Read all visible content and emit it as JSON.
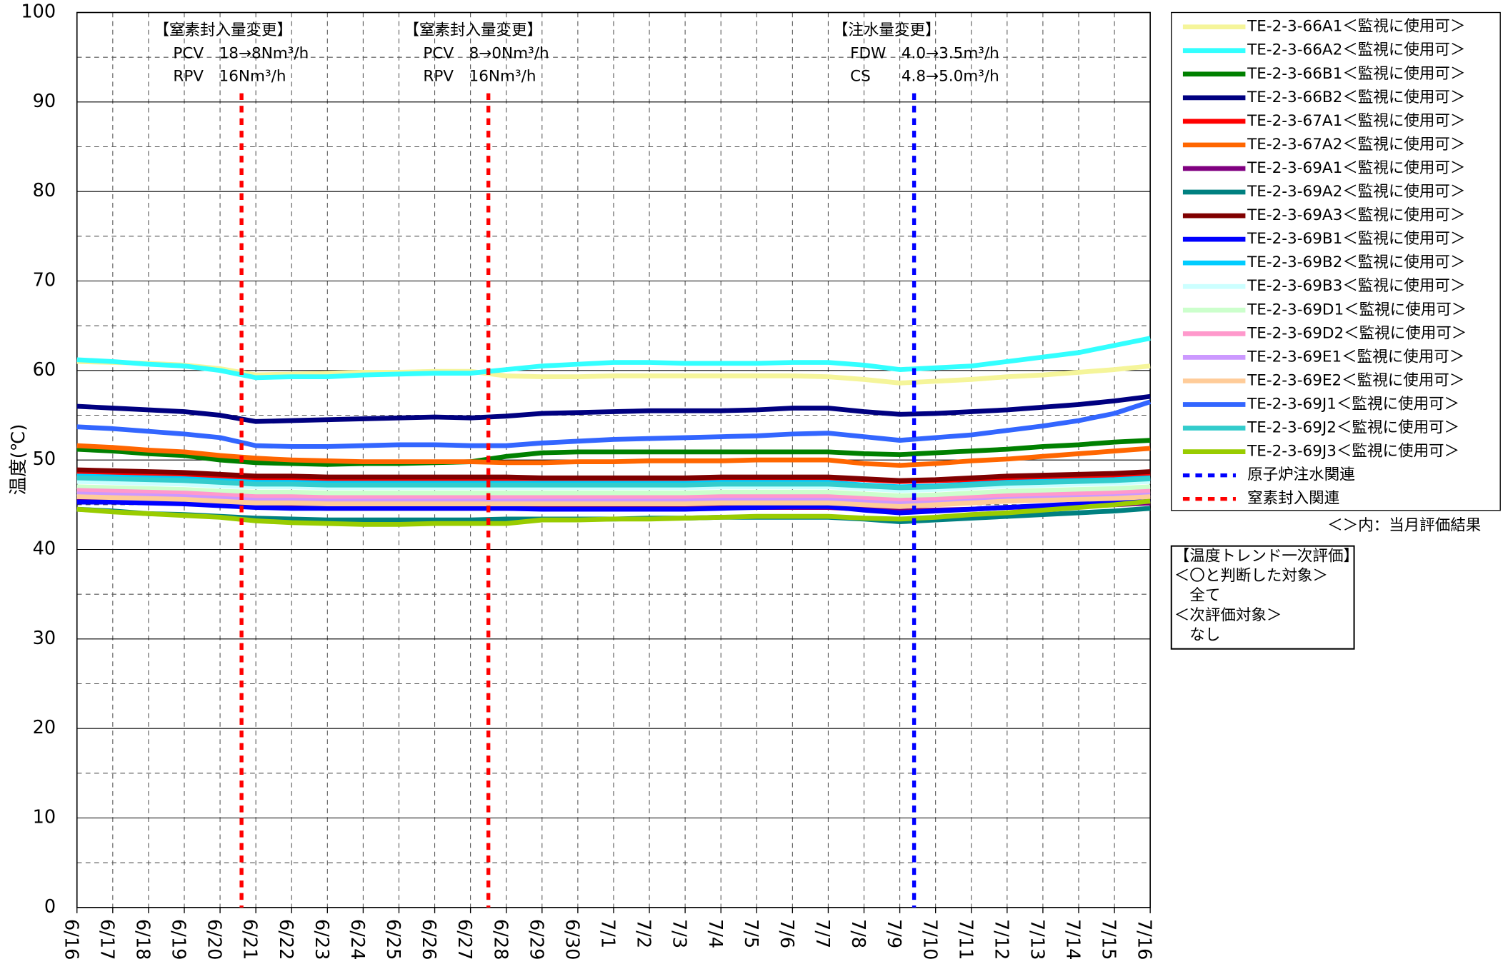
{
  "chart_data": {
    "type": "line",
    "y_axis_label": "温度(℃)",
    "categories": [
      "6/16",
      "6/17",
      "6/18",
      "6/19",
      "6/20",
      "6/21",
      "6/22",
      "6/23",
      "6/24",
      "6/25",
      "6/26",
      "6/27",
      "6/28",
      "6/29",
      "6/30",
      "7/1",
      "7/2",
      "7/3",
      "7/4",
      "7/5",
      "7/6",
      "7/7",
      "7/8",
      "7/9",
      "7/10",
      "7/11",
      "7/12",
      "7/13",
      "7/14",
      "7/15",
      "7/16"
    ],
    "ylim": [
      0,
      100
    ],
    "yticks": [
      0,
      10,
      20,
      30,
      40,
      50,
      60,
      70,
      80,
      90,
      100
    ],
    "minor_yticks": [
      5,
      15,
      25,
      35,
      45,
      55,
      65,
      75,
      85,
      95
    ],
    "grid": true,
    "series": [
      {
        "name": "TE-2-3-66A1＜監視に使用可＞",
        "color": "#f5f59a",
        "values": [
          61.0,
          60.9,
          60.8,
          60.6,
          60.2,
          59.5,
          59.6,
          59.7,
          59.8,
          59.8,
          59.9,
          59.9,
          59.4,
          59.3,
          59.3,
          59.4,
          59.4,
          59.4,
          59.4,
          59.4,
          59.4,
          59.3,
          59.0,
          58.6,
          58.8,
          59.0,
          59.3,
          59.5,
          59.8,
          60.1,
          60.5
        ]
      },
      {
        "name": "TE-2-3-66A2＜監視に使用可＞",
        "color": "#33ffff",
        "values": [
          61.2,
          61.0,
          60.7,
          60.5,
          60.0,
          59.2,
          59.3,
          59.3,
          59.5,
          59.6,
          59.7,
          59.7,
          60.1,
          60.5,
          60.7,
          60.9,
          60.9,
          60.8,
          60.8,
          60.8,
          60.9,
          60.9,
          60.6,
          60.1,
          60.3,
          60.5,
          61.0,
          61.5,
          62.0,
          62.8,
          63.6
        ]
      },
      {
        "name": "TE-2-3-66B1＜監視に使用可＞",
        "color": "#008000",
        "values": [
          51.2,
          51.0,
          50.7,
          50.5,
          50.0,
          49.7,
          49.6,
          49.5,
          49.6,
          49.6,
          49.7,
          49.8,
          50.4,
          50.8,
          50.9,
          50.9,
          50.9,
          50.9,
          50.9,
          50.9,
          50.9,
          50.9,
          50.7,
          50.6,
          50.8,
          51.0,
          51.2,
          51.5,
          51.7,
          52.0,
          52.2
        ]
      },
      {
        "name": "TE-2-3-66B2＜監視に使用可＞",
        "color": "#000080",
        "values": [
          56.0,
          55.8,
          55.6,
          55.4,
          55.0,
          54.3,
          54.4,
          54.5,
          54.6,
          54.7,
          54.8,
          54.7,
          54.9,
          55.2,
          55.3,
          55.4,
          55.5,
          55.5,
          55.5,
          55.6,
          55.8,
          55.8,
          55.4,
          55.1,
          55.2,
          55.4,
          55.6,
          55.9,
          56.2,
          56.6,
          57.1
        ]
      },
      {
        "name": "TE-2-3-67A1＜監視に使用可＞",
        "color": "#ff0000",
        "values": [
          48.7,
          48.6,
          48.5,
          48.4,
          48.2,
          48.0,
          48.0,
          47.9,
          47.9,
          47.9,
          47.9,
          47.9,
          47.9,
          47.9,
          47.9,
          47.9,
          47.9,
          47.9,
          48.0,
          48.0,
          48.0,
          48.0,
          47.8,
          47.6,
          47.7,
          47.8,
          48.0,
          48.1,
          48.2,
          48.3,
          48.5
        ]
      },
      {
        "name": "TE-2-3-67A2＜監視に使用可＞",
        "color": "#ff6600",
        "values": [
          51.6,
          51.4,
          51.1,
          50.9,
          50.5,
          50.2,
          50.0,
          49.9,
          49.8,
          49.8,
          49.8,
          49.8,
          49.7,
          49.7,
          49.8,
          49.8,
          49.9,
          49.9,
          49.9,
          50.0,
          50.0,
          50.0,
          49.6,
          49.4,
          49.6,
          49.9,
          50.1,
          50.4,
          50.7,
          51.0,
          51.3
        ]
      },
      {
        "name": "TE-2-3-69A1＜監視に使用可＞",
        "color": "#800080",
        "values": [
          45.5,
          45.4,
          45.3,
          45.2,
          45.0,
          44.8,
          44.7,
          44.6,
          44.6,
          44.6,
          44.6,
          44.6,
          44.6,
          44.6,
          44.6,
          44.6,
          44.6,
          44.6,
          44.7,
          44.7,
          44.7,
          44.7,
          44.5,
          44.3,
          44.4,
          44.5,
          44.7,
          44.8,
          44.9,
          45.0,
          45.2
        ]
      },
      {
        "name": "TE-2-3-69A2＜監視に使用可＞",
        "color": "#008080",
        "values": [
          44.5,
          44.3,
          44.0,
          43.9,
          43.7,
          43.5,
          43.4,
          43.3,
          43.3,
          43.3,
          43.3,
          43.3,
          43.4,
          43.4,
          43.4,
          43.4,
          43.5,
          43.5,
          43.6,
          43.6,
          43.6,
          43.6,
          43.4,
          43.1,
          43.3,
          43.5,
          43.7,
          43.9,
          44.1,
          44.3,
          44.6
        ]
      },
      {
        "name": "TE-2-3-69A3＜監視に使用可＞",
        "color": "#800000",
        "values": [
          48.9,
          48.8,
          48.7,
          48.6,
          48.4,
          48.2,
          48.2,
          48.1,
          48.1,
          48.1,
          48.1,
          48.1,
          48.1,
          48.0,
          48.0,
          48.0,
          48.0,
          48.0,
          48.1,
          48.1,
          48.1,
          48.1,
          47.9,
          47.7,
          47.8,
          48.0,
          48.2,
          48.3,
          48.4,
          48.5,
          48.7
        ]
      },
      {
        "name": "TE-2-3-69B1＜監視に使用可＞",
        "color": "#0000ff",
        "values": [
          45.3,
          45.3,
          45.2,
          45.1,
          44.9,
          44.7,
          44.6,
          44.6,
          44.6,
          44.6,
          44.6,
          44.6,
          44.6,
          44.5,
          44.5,
          44.5,
          44.5,
          44.5,
          44.6,
          44.7,
          44.8,
          44.8,
          44.4,
          44.1,
          44.3,
          44.5,
          44.7,
          44.9,
          45.1,
          45.3,
          45.5
        ]
      },
      {
        "name": "TE-2-3-69B2＜監視に使用可＞",
        "color": "#00ccff",
        "values": [
          48.2,
          48.1,
          48.0,
          47.9,
          47.7,
          47.5,
          47.5,
          47.4,
          47.4,
          47.4,
          47.4,
          47.4,
          47.4,
          47.4,
          47.4,
          47.4,
          47.4,
          47.4,
          47.5,
          47.5,
          47.5,
          47.5,
          47.2,
          47.0,
          47.1,
          47.3,
          47.5,
          47.6,
          47.7,
          47.8,
          48.0
        ]
      },
      {
        "name": "TE-2-3-69B3＜監視に使用可＞",
        "color": "#ccffff",
        "values": [
          47.6,
          47.5,
          47.4,
          47.3,
          47.1,
          47.0,
          47.0,
          46.9,
          46.9,
          46.9,
          46.9,
          46.9,
          46.9,
          46.9,
          46.9,
          46.9,
          46.9,
          46.9,
          47.0,
          47.0,
          47.0,
          47.0,
          46.8,
          46.6,
          46.7,
          46.9,
          47.1,
          47.2,
          47.3,
          47.4,
          47.6
        ]
      },
      {
        "name": "TE-2-3-69D1＜監視に使用可＞",
        "color": "#ccffcc",
        "values": [
          47.0,
          46.9,
          46.8,
          46.7,
          46.5,
          46.4,
          46.4,
          46.3,
          46.3,
          46.3,
          46.3,
          46.3,
          46.3,
          46.3,
          46.3,
          46.3,
          46.3,
          46.3,
          46.4,
          46.4,
          46.4,
          46.4,
          46.2,
          46.0,
          46.1,
          46.3,
          46.5,
          46.6,
          46.7,
          46.8,
          47.0
        ]
      },
      {
        "name": "TE-2-3-69D2＜監視に使用可＞",
        "color": "#ff99cc",
        "values": [
          46.6,
          46.5,
          46.4,
          46.3,
          46.1,
          45.9,
          45.9,
          45.8,
          45.8,
          45.8,
          45.8,
          45.8,
          45.8,
          45.8,
          45.8,
          45.8,
          45.8,
          45.8,
          45.9,
          45.9,
          45.9,
          45.9,
          45.7,
          45.5,
          45.6,
          45.8,
          46.0,
          46.1,
          46.2,
          46.3,
          46.5
        ]
      },
      {
        "name": "TE-2-3-69E1＜監視に使用可＞",
        "color": "#cc99ff",
        "values": [
          46.2,
          46.1,
          46.0,
          45.9,
          45.7,
          45.5,
          45.5,
          45.4,
          45.4,
          45.4,
          45.4,
          45.4,
          45.4,
          45.4,
          45.4,
          45.4,
          45.4,
          45.4,
          45.5,
          45.5,
          45.5,
          45.5,
          45.3,
          45.1,
          45.2,
          45.4,
          45.6,
          45.7,
          45.8,
          45.9,
          46.1
        ]
      },
      {
        "name": "TE-2-3-69E2＜監視に使用可＞",
        "color": "#ffcc99",
        "values": [
          45.9,
          45.8,
          45.7,
          45.6,
          45.4,
          45.2,
          45.2,
          45.1,
          45.1,
          45.1,
          45.1,
          45.1,
          45.1,
          45.1,
          45.1,
          45.1,
          45.1,
          45.1,
          45.2,
          45.2,
          45.2,
          45.2,
          45.0,
          44.8,
          45.0,
          45.2,
          45.4,
          45.5,
          45.6,
          45.7,
          45.9
        ]
      },
      {
        "name": "TE-2-3-69J1＜監視に使用可＞",
        "color": "#3366ff",
        "values": [
          53.7,
          53.5,
          53.2,
          52.9,
          52.5,
          51.6,
          51.5,
          51.5,
          51.6,
          51.7,
          51.7,
          51.6,
          51.6,
          51.9,
          52.1,
          52.3,
          52.4,
          52.5,
          52.6,
          52.7,
          52.9,
          53.0,
          52.6,
          52.2,
          52.5,
          52.8,
          53.3,
          53.8,
          54.4,
          55.2,
          56.5
        ]
      },
      {
        "name": "TE-2-3-69J2＜監視に使用可＞",
        "color": "#33cccc",
        "values": [
          48.0,
          47.9,
          47.8,
          47.7,
          47.5,
          47.3,
          47.3,
          47.2,
          47.2,
          47.2,
          47.2,
          47.2,
          47.2,
          47.2,
          47.2,
          47.2,
          47.2,
          47.2,
          47.3,
          47.3,
          47.3,
          47.3,
          47.1,
          46.9,
          47.0,
          47.2,
          47.4,
          47.5,
          47.6,
          47.7,
          47.9
        ]
      },
      {
        "name": "TE-2-3-69J3＜監視に使用可＞",
        "color": "#99cc00",
        "values": [
          44.5,
          44.2,
          44.0,
          43.8,
          43.6,
          43.2,
          43.0,
          42.9,
          42.8,
          42.8,
          42.9,
          42.9,
          42.9,
          43.3,
          43.3,
          43.4,
          43.4,
          43.5,
          43.6,
          43.7,
          43.7,
          43.7,
          43.5,
          43.4,
          43.6,
          43.9,
          44.1,
          44.4,
          44.7,
          45.0,
          45.4
        ]
      }
    ],
    "event_lines": [
      {
        "name": "原子炉注水関連",
        "color": "#0000ff",
        "x": [
          23.4
        ]
      },
      {
        "name": "窒素封入関連",
        "color": "#ff0000",
        "x": [
          4.6,
          11.5
        ]
      }
    ],
    "annotations": [
      {
        "lines": [
          "【窒素封入量変更】",
          "PCV　18→8Nm³/h",
          "RPV　16Nm³/h"
        ]
      },
      {
        "lines": [
          "【窒素封入量変更】",
          "PCV　8→0Nm³/h",
          "RPV　16Nm³/h"
        ]
      },
      {
        "lines": [
          "【注水量変更】",
          "FDW　4.0→3.5m³/h",
          "CS　　4.8→5.0m³/h"
        ]
      }
    ],
    "legend_note": "＜＞内：当月評価結果",
    "evaluation_box": [
      "【温度トレンド一次評価】",
      "＜〇と判断した対象＞",
      "　全て",
      "＜次評価対象＞",
      "　なし"
    ]
  }
}
